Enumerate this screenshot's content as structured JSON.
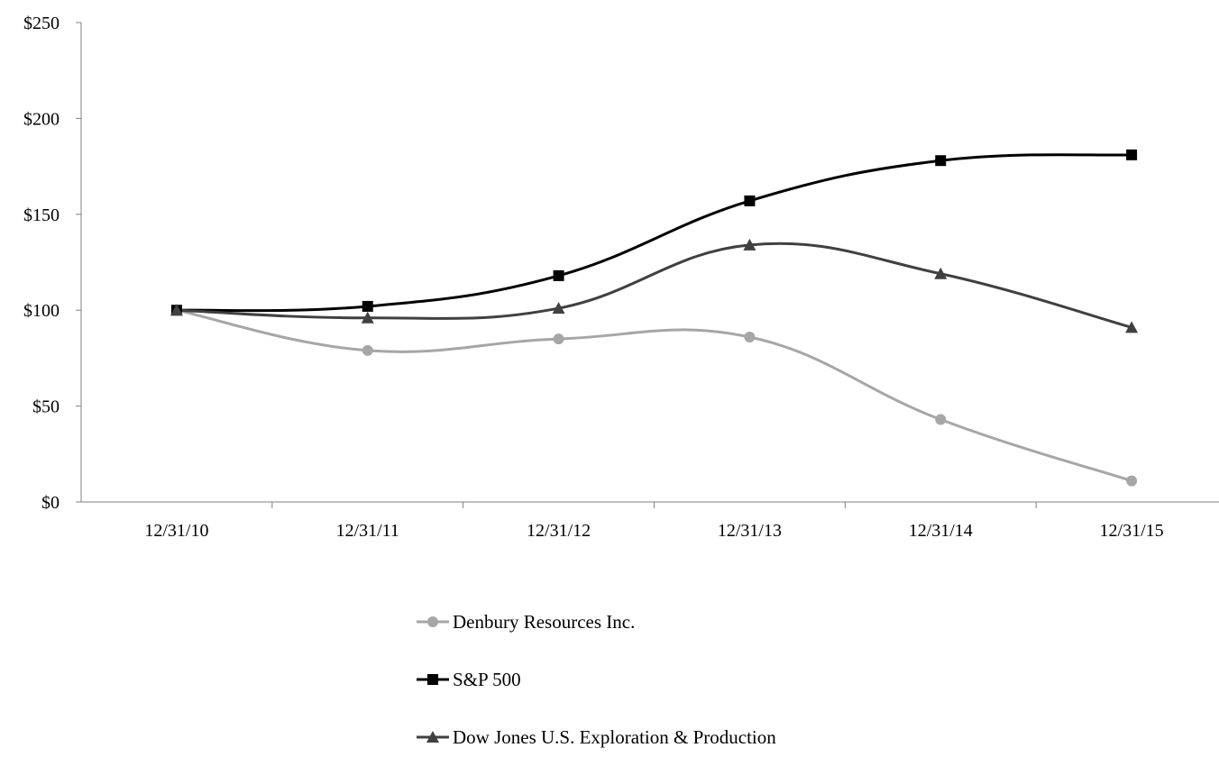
{
  "chart_data": {
    "type": "line",
    "title": "",
    "xlabel": "",
    "ylabel": "",
    "categories": [
      "12/31/10",
      "12/31/11",
      "12/31/12",
      "12/31/13",
      "12/31/14",
      "12/31/15"
    ],
    "ylim": [
      0,
      250
    ],
    "yticks": [
      0,
      50,
      100,
      150,
      200,
      250
    ],
    "ytick_labels": [
      "$0",
      "$50",
      "$100",
      "$150",
      "$200",
      "$250"
    ],
    "grid": false,
    "smooth": true,
    "legend_position": "bottom",
    "series": [
      {
        "name": "Denbury Resources Inc.",
        "values": [
          100,
          79,
          85,
          86,
          43,
          11
        ],
        "color": "#a6a6a6",
        "marker": "circle"
      },
      {
        "name": "S&P 500",
        "values": [
          100,
          102,
          118,
          157,
          178,
          181
        ],
        "color": "#000000",
        "marker": "square"
      },
      {
        "name": "Dow Jones U.S. Exploration & Production",
        "values": [
          100,
          96,
          101,
          134,
          119,
          91
        ],
        "color": "#404040",
        "marker": "triangle"
      }
    ]
  }
}
